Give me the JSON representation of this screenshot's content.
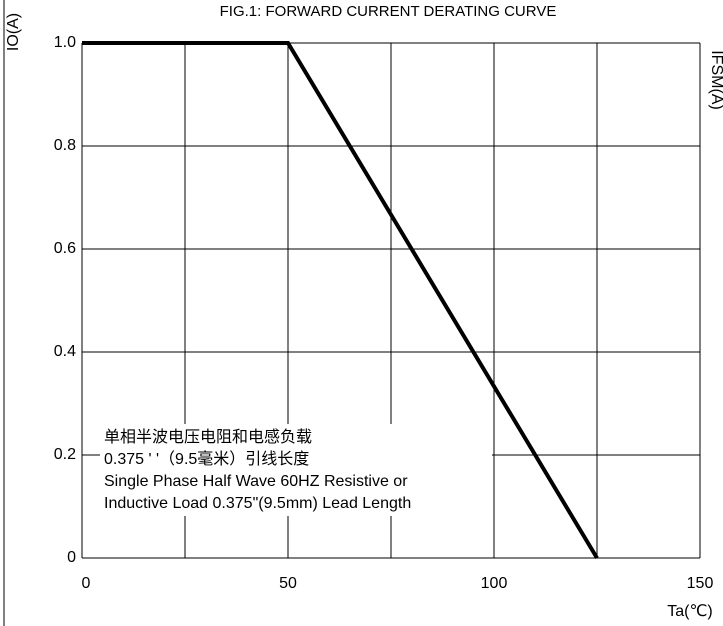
{
  "chart_data": {
    "type": "line",
    "title": "FIG.1: FORWARD CURRENT  DERATING CURVE",
    "y_label": "IO(A)",
    "x_label": "Ta(℃)",
    "y2_label": "IFSM(A)",
    "x": [
      0,
      50,
      125
    ],
    "series": [
      {
        "color": "#000000",
        "values": [
          1,
          1,
          0
        ]
      }
    ],
    "xlim": [
      0,
      150
    ],
    "xticks": [
      0,
      50,
      100,
      150
    ],
    "xminor": [
      25,
      75,
      125
    ],
    "ylim": [
      0,
      1
    ],
    "yticks": [
      0,
      {
        "value": 0.2,
        "label": "0.2"
      },
      {
        "value": 0.4,
        "label": "0.4"
      },
      {
        "value": 0.6,
        "label": "0.6"
      },
      {
        "value": 0.8,
        "label": "0.8"
      },
      {
        "value": 1,
        "label": "1.0"
      }
    ],
    "grid": true,
    "annotations": [
      "单相半波电压电阻和电感负载",
      "0.375 ' '（9.5毫米）引线长度",
      "Single Phase Half Wave  60HZ Resistive or",
      "Inductive Load 0.375\"(9.5mm) Lead Length"
    ]
  }
}
